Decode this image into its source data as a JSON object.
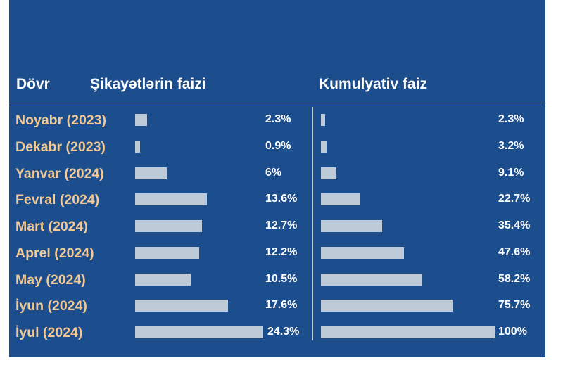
{
  "chart_data": {
    "type": "bar",
    "headers": {
      "period": "Dövr",
      "complaint_share": "Şikayətlərin faizi",
      "cumulative": "Kumulyativ faiz"
    },
    "categories": [
      "Noyabr (2023)",
      "Dekabr (2023)",
      "Yanvar (2024)",
      "Fevral (2024)",
      "Mart (2024)",
      "Aprel (2024)",
      "May (2024)",
      "İyun (2024)",
      "İyul (2024)"
    ],
    "series": [
      {
        "values": [
          2.3,
          0.9,
          6,
          13.6,
          12.7,
          12.2,
          10.5,
          17.6,
          24.3
        ],
        "labels": [
          "2.3%",
          "0.9%",
          "6%",
          "13.6%",
          "12.7%",
          "12.2%",
          "10.5%",
          "17.6%",
          "24.3%"
        ]
      },
      {
        "values": [
          2.3,
          3.2,
          9.1,
          22.7,
          35.4,
          47.6,
          58.2,
          75.7,
          100
        ],
        "labels": [
          "2.3%",
          "3.2%",
          "9.1%",
          "22.7%",
          "35.4%",
          "47.6%",
          "58.2%",
          "75.7%",
          "100%"
        ]
      }
    ],
    "legend": "none",
    "grid": false
  },
  "colors": {
    "background": "#1c4d8c",
    "bar": "#bccbd7",
    "period_text": "#f2c894",
    "text": "#ffffff"
  }
}
